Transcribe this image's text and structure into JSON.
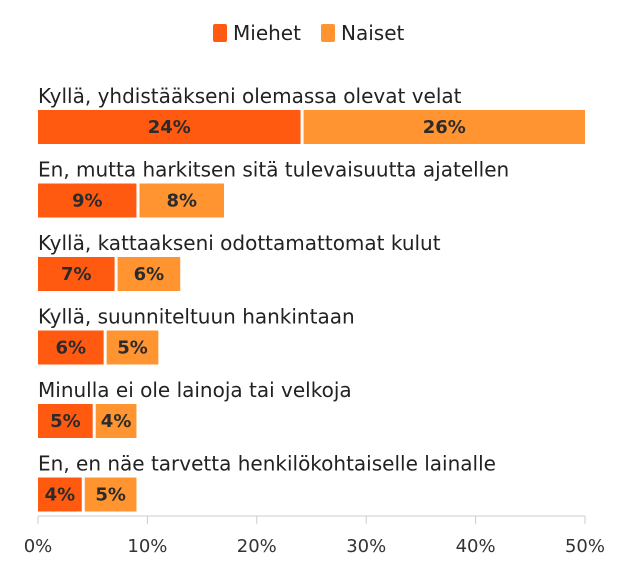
{
  "chart_data": {
    "type": "bar",
    "orientation": "horizontal",
    "stacked": true,
    "title": "",
    "xlabel": "",
    "ylabel": "",
    "xlim": [
      0,
      50
    ],
    "x_ticks": [
      0,
      10,
      20,
      30,
      40,
      50
    ],
    "x_tick_labels": [
      "0%",
      "10%",
      "20%",
      "30%",
      "40%",
      "50%"
    ],
    "unit_suffix": "%",
    "legend_position": "top-center",
    "grid": false,
    "categories": [
      "Kyllä, yhdistääkseni olemassa olevat velat",
      "En, mutta harkitsen sitä tulevaisuutta ajatellen",
      "Kyllä, kattaakseni odottamattomat kulut",
      "Kyllä, suunniteltuun hankintaan",
      "Minulla ei ole lainoja tai velkoja",
      "En, en näe tarvetta henkilökohtaiselle lainalle"
    ],
    "series": [
      {
        "name": "Miehet",
        "color": "#FF5A0F",
        "values": [
          24,
          9,
          7,
          6,
          5,
          4
        ]
      },
      {
        "name": "Naiset",
        "color": "#FF9430",
        "values": [
          26,
          8,
          6,
          5,
          4,
          5
        ]
      }
    ]
  }
}
